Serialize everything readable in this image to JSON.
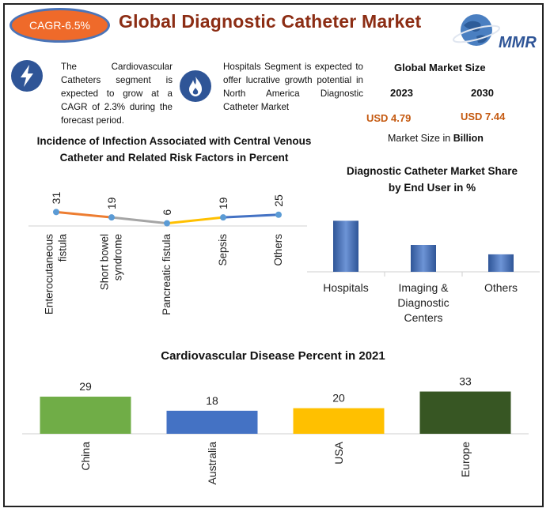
{
  "header": {
    "cagr": "CAGR-6.5%",
    "title": "Global Diagnostic Catheter Market",
    "logo_text": "MMR"
  },
  "info": [
    {
      "icon": "lightning-icon",
      "text": "The Cardiovascular Catheters segment is expected to grow at a CAGR of 2.3% during the forecast period."
    },
    {
      "icon": "flame-icon",
      "text": "Hospitals Segment is expected to offer lucrative growth potential in North America Diagnostic Catheter Market"
    }
  ],
  "market_size": {
    "title": "Global Market Size",
    "year_a": "2023",
    "year_b": "2030",
    "value_a": "USD 4.79",
    "value_b": "USD 7.44",
    "unit_prefix": "Market Size in",
    "unit_bold": "Billion"
  },
  "colors": {
    "title": "#8c2d14",
    "accent": "#ef6a2a",
    "value": "#c55a11",
    "blue": "#2f5597"
  },
  "chart_data": [
    {
      "type": "line",
      "title_line1": "Incidence of Infection Associated with Central Venous",
      "title_line2": "Catheter and Related Risk Factors in Percent",
      "categories": [
        "Enterocutaneous fistula",
        "Short bowel syndrome",
        "Pancreatic fistula",
        "Sepsis",
        "Others"
      ],
      "tick_lines": [
        [
          "Enterocutaneous",
          "fistula"
        ],
        [
          "Short bowel",
          "syndrome"
        ],
        [
          "Pancreatic fistula"
        ],
        [
          "Sepsis"
        ],
        [
          "Others"
        ]
      ],
      "values": [
        31,
        19,
        6,
        19,
        25
      ],
      "segment_colors": [
        "#ed7d31",
        "#a5a5a5",
        "#ffc000",
        "#4472c4"
      ],
      "point_color": "#5b9bd5"
    },
    {
      "type": "bar",
      "title_line1": "Diagnostic Catheter Market Share",
      "title_line2": "by End User in %",
      "categories": [
        "Hospitals",
        "Imaging & Diagnostic Centers",
        "Others"
      ],
      "tick_lines": [
        [
          "Hospitals"
        ],
        [
          "Imaging &",
          "Diagnostic",
          "Centers"
        ],
        [
          "Others"
        ]
      ],
      "values": [
        38,
        20,
        13
      ],
      "bar_color": "#2f5597"
    },
    {
      "type": "bar",
      "title": "Cardiovascular Disease Percent in 2021",
      "categories": [
        "China",
        "Australia",
        "USA",
        "Europe"
      ],
      "values": [
        29,
        18,
        20,
        33
      ],
      "colors": [
        "#70ad47",
        "#4472c4",
        "#ffc000",
        "#375623"
      ]
    }
  ]
}
